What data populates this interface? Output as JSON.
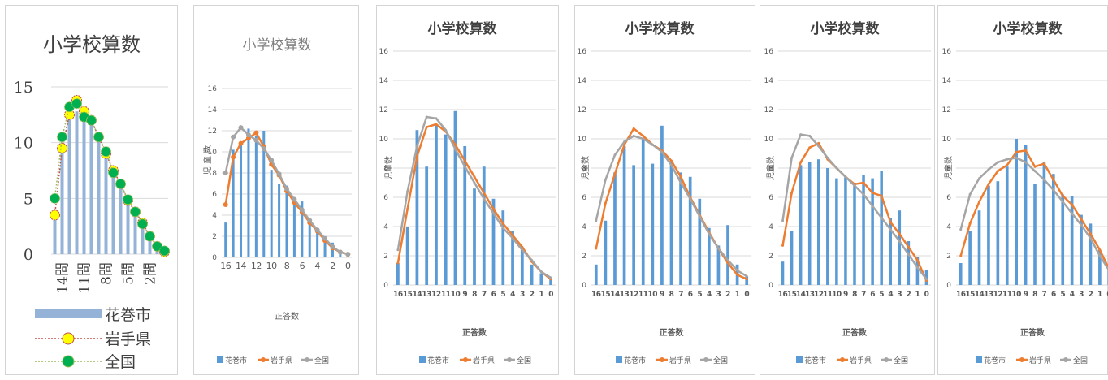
{
  "colors": {
    "city": "#5b9bd5",
    "pref": "#ed7d31",
    "national": "#a5a5a5",
    "c1_city": "#95b3d7",
    "c1_pref_line": "#c0504d",
    "c1_pref_marker": "#ffff00",
    "c1_nat_line": "#9bbb59",
    "c1_nat_marker": "#00b050"
  },
  "chart_data": [
    {
      "type": "bar",
      "title": "小学校算数",
      "xlabel": "",
      "ylabel": "",
      "ylim": [
        0,
        15
      ],
      "yticks": [
        "0",
        "5",
        "10",
        "15"
      ],
      "x": [
        15,
        14,
        13,
        12,
        11,
        10,
        9,
        8,
        7,
        6,
        5,
        4,
        3,
        2,
        1,
        0
      ],
      "xtick_labels": [
        "14問",
        "11問",
        "8問",
        "5問",
        "2問"
      ],
      "legend": [
        "花巻市",
        "岩手県",
        "全国"
      ],
      "legend_position": "bottom",
      "grid": true,
      "series": [
        {
          "name": "花巻市",
          "kind": "bar",
          "values": [
            3.5,
            9.8,
            12.5,
            12.8,
            12.6,
            12,
            10.5,
            9,
            7.5,
            5.9,
            4.8,
            3.8,
            2.7,
            1.7,
            0.7,
            0.3
          ]
        },
        {
          "name": "岩手県",
          "kind": "line",
          "values": [
            3.5,
            9.5,
            12.5,
            13.8,
            12.8,
            12,
            10.5,
            9,
            7.5,
            6.3,
            4.8,
            3.8,
            2.8,
            1.6,
            0.7,
            0.2
          ]
        },
        {
          "name": "全国",
          "kind": "line",
          "values": [
            5,
            10.5,
            13.2,
            13.5,
            12.3,
            12,
            10.5,
            9.2,
            7.3,
            6.3,
            4.9,
            3.8,
            2.7,
            1.6,
            0.7,
            0.3
          ]
        }
      ]
    },
    {
      "type": "bar",
      "title": "小学校算数",
      "xlabel": "正答数",
      "ylabel": "児 童 数",
      "ylim": [
        0,
        16
      ],
      "yticks": [
        "0",
        "2",
        "4",
        "6",
        "8",
        "10",
        "12",
        "14",
        "16"
      ],
      "x": [
        16,
        15,
        14,
        13,
        12,
        11,
        10,
        9,
        8,
        7,
        6,
        5,
        4,
        3,
        2,
        1,
        0
      ],
      "xtick_labels": [
        "16",
        "14",
        "12",
        "10",
        "8",
        "6",
        "4",
        "2",
        "0"
      ],
      "legend": [
        "花巻市",
        "岩手県",
        "全国"
      ],
      "legend_position": "bottom",
      "grid": true,
      "series": [
        {
          "name": "花巻市",
          "kind": "bar",
          "values": [
            3.3,
            10.2,
            10.7,
            12.2,
            11.5,
            12,
            8.3,
            7,
            6.8,
            5.5,
            5.3,
            3.3,
            2.8,
            1.8,
            1.4,
            0.6,
            0.2
          ]
        },
        {
          "name": "岩手県",
          "kind": "line",
          "values": [
            5,
            9.5,
            10.8,
            11.3,
            11.8,
            10.5,
            8.8,
            7.8,
            6.3,
            5.2,
            4.3,
            3.3,
            2.5,
            1.6,
            0.9,
            0.5,
            0.3
          ]
        },
        {
          "name": "全国",
          "kind": "line",
          "values": [
            8,
            11.4,
            12.3,
            11.6,
            11.1,
            10.3,
            9.2,
            7.9,
            6.5,
            5.5,
            4.5,
            3.5,
            2.6,
            1.8,
            1,
            0.5,
            0.3
          ]
        }
      ]
    },
    {
      "type": "bar",
      "title": "小学校算数",
      "xlabel": "正答数",
      "ylabel": "児童数",
      "ylim": [
        0,
        16
      ],
      "yticks": [
        "0",
        "2",
        "4",
        "6",
        "8",
        "10",
        "12",
        "14",
        "16"
      ],
      "x": [
        16,
        15,
        14,
        13,
        12,
        11,
        10,
        9,
        8,
        7,
        6,
        5,
        4,
        3,
        2,
        1,
        0
      ],
      "xtick_labels": [
        "16",
        "15",
        "14",
        "13",
        "12",
        "11",
        "10",
        "9",
        "8",
        "7",
        "6",
        "5",
        "4",
        "3",
        "2",
        "1",
        "0"
      ],
      "legend": [
        "花巻市",
        "岩手県",
        "全国"
      ],
      "legend_position": "bottom",
      "grid": true,
      "series": [
        {
          "name": "花巻市",
          "kind": "bar",
          "values": [
            1.5,
            4,
            10.6,
            8.1,
            11,
            10.3,
            11.9,
            9.5,
            6.6,
            8.1,
            5.9,
            5.1,
            3.7,
            2.6,
            1.4,
            0.8,
            0.4
          ]
        },
        {
          "name": "岩手県",
          "kind": "line",
          "values": [
            1.5,
            5.2,
            8.8,
            10.8,
            11,
            10.5,
            9.6,
            8.5,
            7.4,
            6.3,
            5.2,
            4.2,
            3.4,
            2.6,
            1.6,
            0.9,
            0.4
          ]
        },
        {
          "name": "全国",
          "kind": "line",
          "values": [
            2.4,
            6.4,
            9.5,
            11.5,
            11.4,
            10.6,
            9.3,
            8.1,
            7,
            5.9,
            4.9,
            3.9,
            3.2,
            2.4,
            1.7,
            0.9,
            0.5
          ]
        }
      ]
    },
    {
      "type": "bar",
      "title": "小学校算数",
      "xlabel": "正答数",
      "ylabel": "児童数",
      "ylim": [
        0,
        16
      ],
      "yticks": [
        "0",
        "2",
        "4",
        "6",
        "8",
        "10",
        "12",
        "14",
        "16"
      ],
      "x": [
        16,
        15,
        14,
        13,
        12,
        11,
        10,
        9,
        8,
        7,
        6,
        5,
        4,
        3,
        2,
        1,
        0
      ],
      "xtick_labels": [
        "16",
        "15",
        "14",
        "13",
        "12",
        "11",
        "10",
        "9",
        "8",
        "7",
        "6",
        "5",
        "4",
        "3",
        "2",
        "1",
        "0"
      ],
      "legend": [
        "花巻市",
        "岩手県",
        "全国"
      ],
      "legend_position": "bottom",
      "grid": true,
      "series": [
        {
          "name": "花巻市",
          "kind": "bar",
          "values": [
            1.4,
            4.4,
            7.7,
            9.5,
            8.2,
            10,
            8.3,
            10.9,
            8.5,
            7.7,
            7.4,
            5.9,
            3.9,
            2.7,
            4.1,
            1.4,
            0.6
          ]
        },
        {
          "name": "岩手県",
          "kind": "line",
          "values": [
            2.5,
            5.6,
            7.6,
            9.6,
            10.7,
            10.2,
            9.6,
            9.2,
            8.5,
            7.4,
            6,
            4.8,
            3.6,
            2.5,
            1.5,
            0.7,
            0.4
          ]
        },
        {
          "name": "全国",
          "kind": "line",
          "values": [
            4.4,
            7.2,
            8.9,
            9.8,
            10.2,
            10,
            9.6,
            9.1,
            8.2,
            7,
            5.9,
            4.7,
            3.5,
            2.5,
            1.7,
            1,
            0.6
          ]
        }
      ]
    },
    {
      "type": "bar",
      "title": "小学校算数",
      "xlabel": "正答数",
      "ylabel": "児童数",
      "ylim": [
        0,
        16
      ],
      "yticks": [
        "0",
        "2",
        "4",
        "6",
        "8",
        "10",
        "12",
        "14",
        "16"
      ],
      "x": [
        16,
        15,
        14,
        13,
        12,
        11,
        10,
        9,
        8,
        7,
        6,
        5,
        4,
        3,
        2,
        1,
        0
      ],
      "xtick_labels": [
        "16",
        "15",
        "14",
        "13",
        "12",
        "11",
        "10",
        "9",
        "8",
        "7",
        "6",
        "5",
        "4",
        "3",
        "2",
        "1",
        "0"
      ],
      "legend": [
        "花巻市",
        "岩手県",
        "全国"
      ],
      "legend_position": "bottom",
      "grid": true,
      "series": [
        {
          "name": "花巻市",
          "kind": "bar",
          "values": [
            1.6,
            3.7,
            8.2,
            8.4,
            8.6,
            8,
            7.3,
            7.4,
            7,
            7.5,
            7.3,
            7.8,
            4.6,
            5.1,
            3,
            1.9,
            1
          ]
        },
        {
          "name": "岩手県",
          "kind": "line",
          "values": [
            2.7,
            6.3,
            8.4,
            9.4,
            9.7,
            8.6,
            8,
            7.4,
            6.9,
            7,
            6.3,
            6.1,
            4.3,
            3.5,
            2.6,
            1.7,
            0.3
          ]
        },
        {
          "name": "全国",
          "kind": "line",
          "values": [
            4.4,
            8.7,
            10.3,
            10.2,
            9.5,
            8.7,
            8,
            7.4,
            6.8,
            6.2,
            5.4,
            4.6,
            3.8,
            3,
            2.1,
            1.2,
            0.4
          ]
        }
      ]
    },
    {
      "type": "bar",
      "title": "小学校算数",
      "xlabel": "正答数",
      "ylabel": "児童数",
      "ylim": [
        0,
        16
      ],
      "yticks": [
        "0",
        "2",
        "4",
        "6",
        "8",
        "10",
        "12",
        "14",
        "16"
      ],
      "x": [
        16,
        15,
        14,
        13,
        12,
        11,
        10,
        9,
        8,
        7,
        6,
        5,
        4,
        3,
        2,
        1,
        0
      ],
      "xtick_labels": [
        "16",
        "15",
        "14",
        "13",
        "12",
        "11",
        "10",
        "9",
        "8",
        "7",
        "6",
        "5",
        "4",
        "3",
        "2",
        "1",
        "0"
      ],
      "legend": [
        "花巻市",
        "岩手県",
        "全国"
      ],
      "legend_position": "bottom",
      "grid": true,
      "series": [
        {
          "name": "花巻市",
          "kind": "bar",
          "values": [
            1.5,
            3.7,
            5.1,
            6.8,
            7.1,
            8.1,
            10,
            9.6,
            6.9,
            8.4,
            7.6,
            6.2,
            6.1,
            4.8,
            4.2,
            2.4,
            1
          ]
        },
        {
          "name": "岩手県",
          "kind": "line",
          "values": [
            2,
            4.2,
            5.7,
            6.9,
            7.8,
            8.2,
            9.1,
            9.2,
            8.1,
            8.3,
            7.2,
            6.1,
            5.5,
            4.5,
            3.5,
            2.4,
            1.1
          ]
        },
        {
          "name": "全国",
          "kind": "line",
          "values": [
            3.8,
            6.2,
            7.3,
            7.9,
            8.4,
            8.6,
            8.7,
            8.4,
            7.8,
            7.2,
            6.5,
            5.7,
            4.9,
            4.1,
            3.2,
            2,
            1
          ]
        }
      ]
    }
  ]
}
